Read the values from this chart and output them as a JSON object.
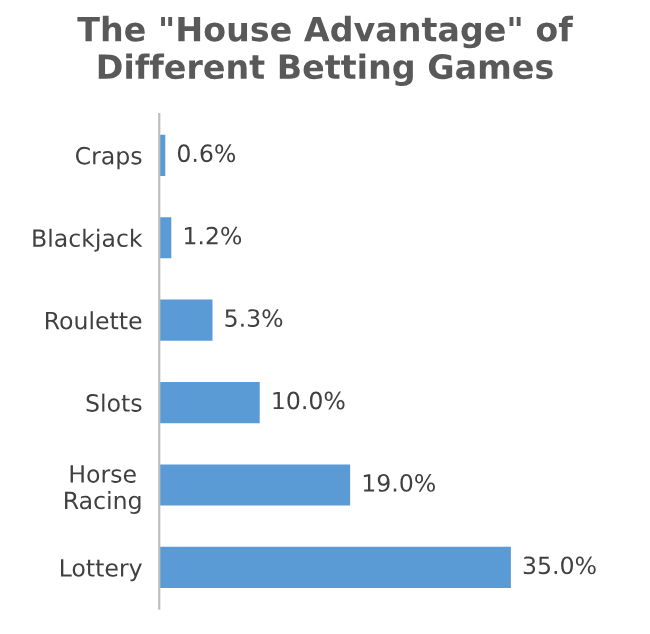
{
  "chart_data": {
    "type": "bar",
    "orientation": "horizontal",
    "title": "The \"House Advantage\" of Different Betting Games",
    "categories": [
      "Craps",
      "Blackjack",
      "Roulette",
      "Slots",
      "Horse Racing",
      "Lottery"
    ],
    "values": [
      0.6,
      1.2,
      5.3,
      10.0,
      19.0,
      35.0
    ],
    "value_labels": [
      "0.6%",
      "1.2%",
      "5.3%",
      "10.0%",
      "19.0%",
      "35.0%"
    ],
    "color": "#5b9bd5",
    "grid": false,
    "legend": false
  }
}
